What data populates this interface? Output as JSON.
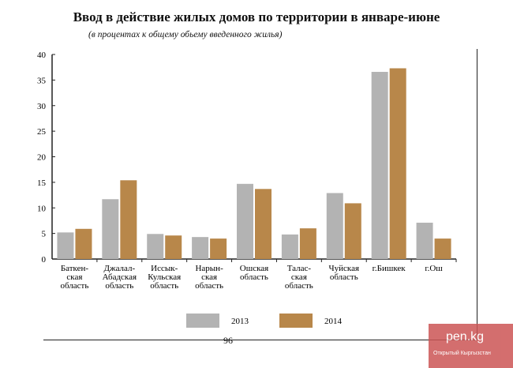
{
  "chart_data": {
    "type": "bar",
    "title": "Ввод в действие жилых домов по территории в январе-июне",
    "subtitle": "(в процентах к общему обьему введенного жилья)",
    "categories": [
      [
        "Баткен-",
        "ская",
        "область"
      ],
      [
        "Джалал-",
        "Абадская",
        "область"
      ],
      [
        "Иссык-",
        "Кульская",
        "область"
      ],
      [
        "Нарын-",
        "ская",
        "область"
      ],
      [
        "Ошская",
        "область"
      ],
      [
        "Талас-",
        "ская",
        "область"
      ],
      [
        "Чуйская",
        "область"
      ],
      [
        "г.Бишкек"
      ],
      [
        "г.Ош"
      ]
    ],
    "series": [
      {
        "name": "2013",
        "color": "#b3b3b3",
        "values": [
          5.2,
          11.7,
          4.9,
          4.3,
          14.7,
          4.8,
          12.9,
          36.6,
          7.1
        ]
      },
      {
        "name": "2014",
        "color": "#b8874a",
        "values": [
          5.9,
          15.4,
          4.6,
          4.0,
          13.7,
          6.0,
          10.9,
          37.3,
          4.0
        ]
      }
    ],
    "ylim": [
      0,
      40
    ],
    "yticks": [
      "0",
      "5",
      "10",
      "15",
      "20",
      "25",
      "30",
      "35",
      "40"
    ],
    "grid": false,
    "legend": "bottom"
  },
  "page_number": "96",
  "watermark": {
    "logo": "pen.kg",
    "text": "Открытый Кыргызстан"
  }
}
